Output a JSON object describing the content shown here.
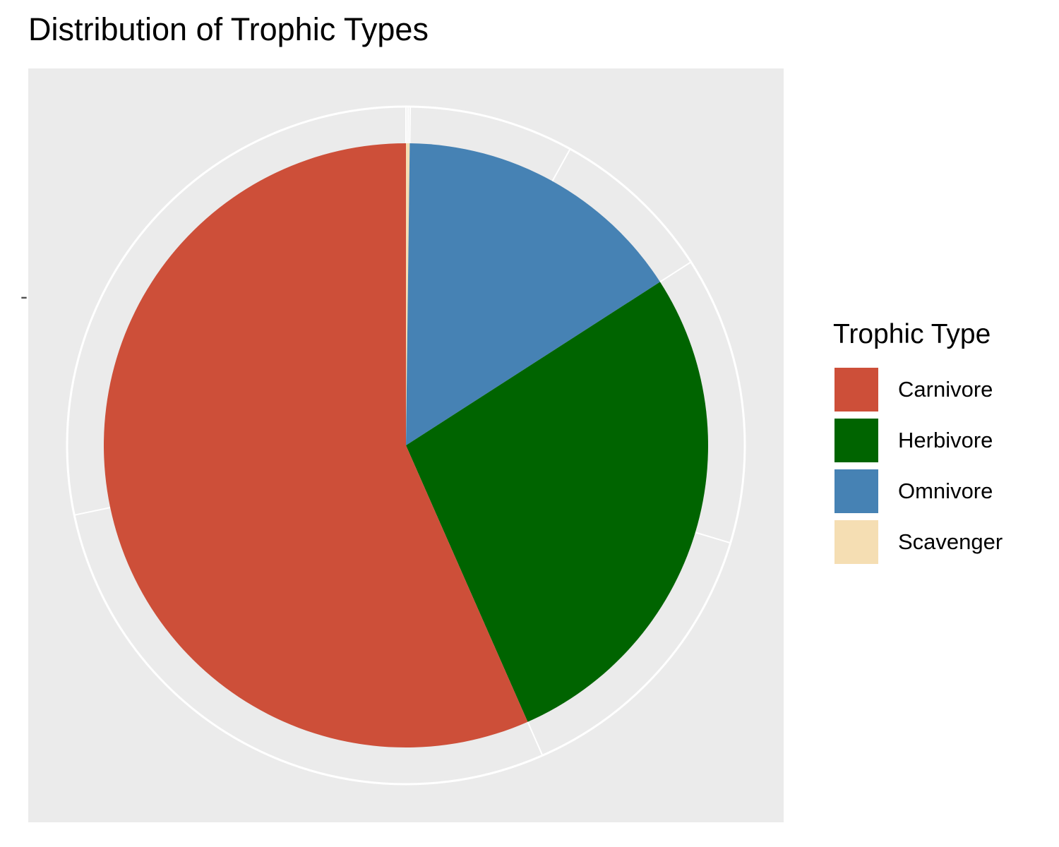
{
  "chart_data": {
    "type": "pie",
    "title": "Distribution of Trophic Types",
    "legend": {
      "title": "Trophic Type",
      "position": "right"
    },
    "y_tick_label": "-",
    "slices": [
      {
        "label": "Carnivore",
        "value": 0.566,
        "color": "#CD4F39"
      },
      {
        "label": "Herbivore",
        "value": 0.275,
        "color": "#006400"
      },
      {
        "label": "Omnivore",
        "value": 0.157,
        "color": "#4682B4"
      },
      {
        "label": "Scavenger",
        "value": 0.002,
        "color": "#F5DEB3"
      }
    ],
    "stack_order": [
      "Scavenger",
      "Omnivore",
      "Herbivore",
      "Carnivore"
    ],
    "panel_background": "#EBEBEB",
    "grid": true,
    "grid_color": "#FFFFFF"
  }
}
